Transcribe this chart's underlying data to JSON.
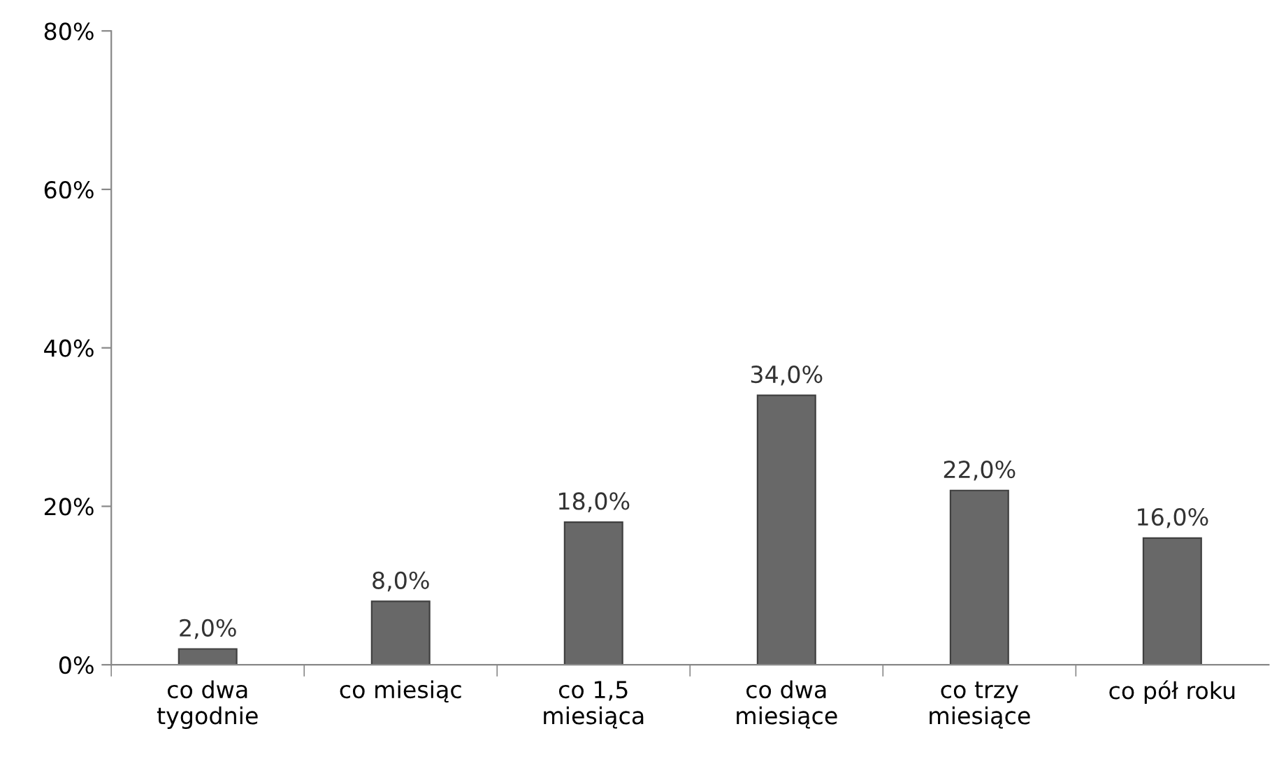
{
  "chart_data": {
    "type": "bar",
    "categories": [
      "co dwa\ntygodnie",
      "co miesiąc",
      "co 1,5\nmiesiąca",
      "co dwa\nmiesiące",
      "co trzy\nmiesiące",
      "co pół roku"
    ],
    "values": [
      2,
      8,
      18,
      34,
      22,
      16
    ],
    "value_labels": [
      "2,0%",
      "8,0%",
      "18,0%",
      "34,0%",
      "22,0%",
      "16,0%"
    ],
    "color": "#686868",
    "ylim": [
      0,
      80
    ],
    "yticks": [
      {
        "value": 0,
        "label": "0%"
      },
      {
        "value": 20,
        "label": "20%"
      },
      {
        "value": 40,
        "label": "40%"
      },
      {
        "value": 60,
        "label": "60%"
      },
      {
        "value": 80,
        "label": "80%"
      }
    ],
    "grid": false,
    "legend": false
  }
}
